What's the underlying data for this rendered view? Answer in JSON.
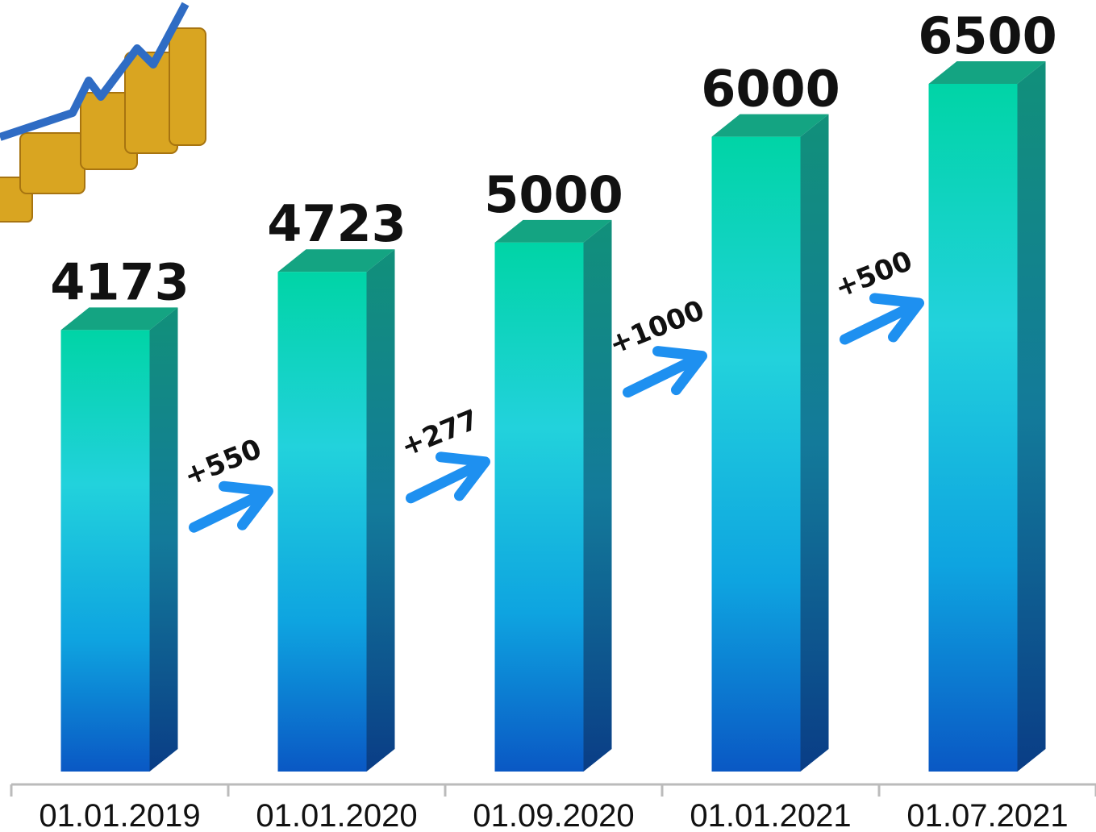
{
  "chart_data": {
    "type": "bar3d",
    "categories": [
      "01.01.2019",
      "01.01.2020",
      "01.09.2020",
      "01.01.2021",
      "01.07.2021"
    ],
    "values": [
      4173,
      4723,
      5000,
      6000,
      6500
    ],
    "annotations": [
      "+550",
      "+277",
      "+1000",
      "+500"
    ]
  }
}
